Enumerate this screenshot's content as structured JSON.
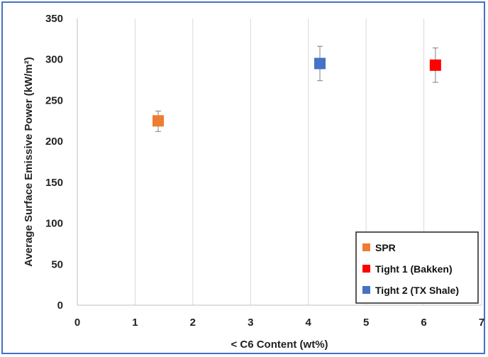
{
  "chart_data": {
    "type": "scatter",
    "title": "",
    "xlabel": "< C6 Content (wt%)",
    "ylabel": "Average Surface Emissive Power (kW/m²)",
    "xlim": [
      0,
      7
    ],
    "ylim": [
      0,
      350
    ],
    "x_ticks": [
      0,
      1,
      2,
      3,
      4,
      5,
      6,
      7
    ],
    "y_ticks": [
      0,
      50,
      100,
      150,
      200,
      250,
      300,
      350
    ],
    "grid": {
      "vertical": true,
      "horizontal": false
    },
    "legend_position": "bottom-right",
    "series": [
      {
        "name": "SPR",
        "color": "#ed7d31",
        "marker": "square",
        "points": [
          {
            "x": 1.4,
            "y": 225,
            "err_low": 212,
            "err_high": 237
          }
        ]
      },
      {
        "name": "Tight 1 (Bakken)",
        "color": "#ff0000",
        "marker": "square",
        "points": [
          {
            "x": 6.2,
            "y": 293,
            "err_low": 272,
            "err_high": 314
          }
        ]
      },
      {
        "name": "Tight 2 (TX Shale)",
        "color": "#4472c4",
        "marker": "square",
        "points": [
          {
            "x": 4.2,
            "y": 295,
            "err_low": 274,
            "err_high": 316
          }
        ]
      }
    ]
  }
}
